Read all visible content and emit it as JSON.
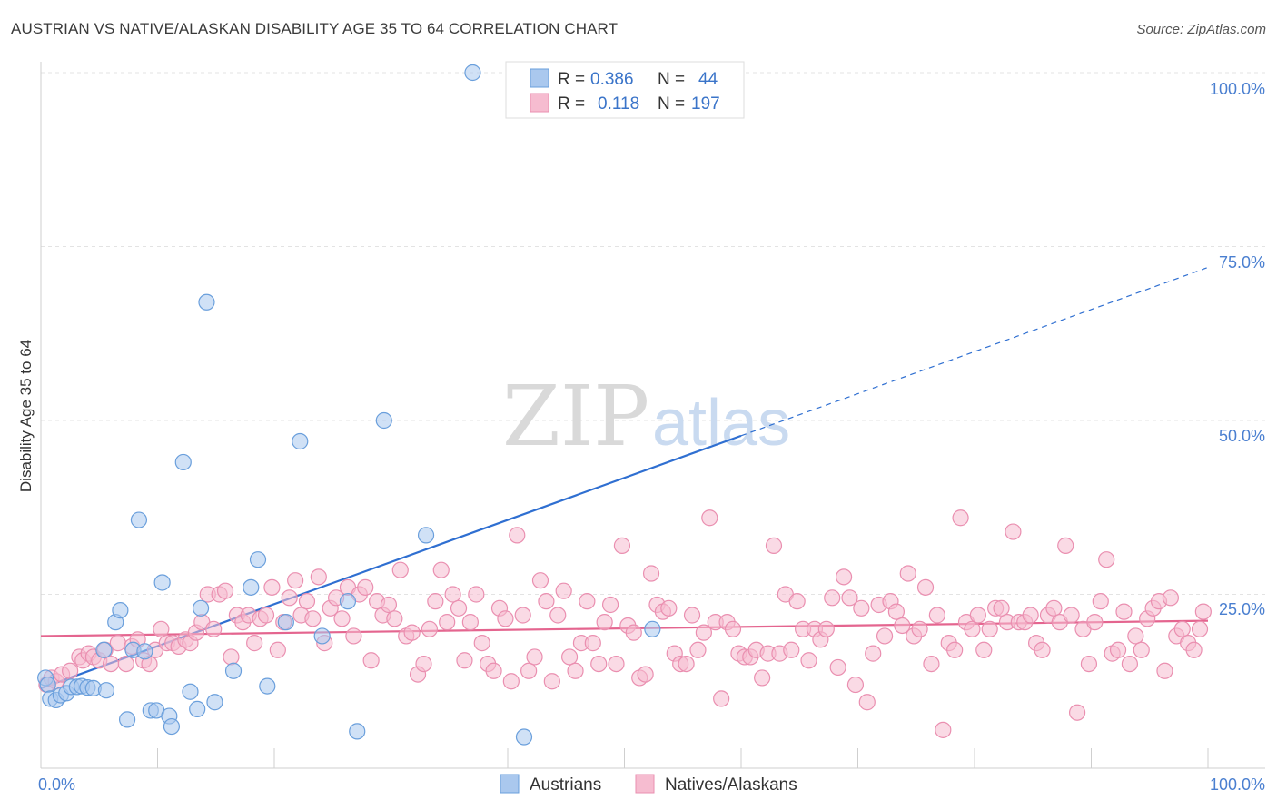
{
  "header": {
    "title": "AUSTRIAN VS NATIVE/ALASKAN DISABILITY AGE 35 TO 64 CORRELATION CHART",
    "source": "Source: ZipAtlas.com"
  },
  "watermark": {
    "zip": "ZIP",
    "atlas": "atlas"
  },
  "colors": {
    "blue_fill": "#aac8ee",
    "blue_stroke": "#6a9fdc",
    "blue_line": "#2f6fd1",
    "pink_fill": "#f6bcd0",
    "pink_stroke": "#ea8fb0",
    "pink_line": "#e4658f",
    "grid": "#e3e3e3",
    "axis": "#cfcfcf"
  },
  "legend": {
    "rows": [
      {
        "r_label": "R =",
        "r_value": "0.386",
        "n_label": "N =",
        "n_value": "44"
      },
      {
        "r_label": "R =",
        "r_value": "0.118",
        "n_label": "N =",
        "n_value": "197"
      }
    ]
  },
  "bottom_legend": {
    "items": [
      "Austrians",
      "Natives/Alaskans"
    ]
  },
  "chart_data": {
    "type": "scatter",
    "title": "AUSTRIAN VS NATIVE/ALASKAN DISABILITY AGE 35 TO 64 CORRELATION CHART",
    "xlabel": "",
    "ylabel": "Disability Age 35 to 64",
    "xlim": [
      0,
      100
    ],
    "ylim": [
      0,
      100
    ],
    "x_tick_labels": [
      "0.0%",
      "100.0%"
    ],
    "y_tick_labels": [
      "100.0%",
      "75.0%",
      "50.0%",
      "25.0%"
    ],
    "y_ticks": [
      100,
      75,
      50,
      25
    ],
    "grid": true,
    "legend_position": "top-center",
    "series": [
      {
        "name": "Austrians",
        "r": 0.386,
        "n": 44,
        "trend": {
          "x0": 0,
          "y0": 11.5,
          "x1": 60,
          "y1": 47.8,
          "dashed_to_x": 100
        },
        "points": [
          [
            0.4,
            13
          ],
          [
            0.6,
            12
          ],
          [
            0.8,
            10
          ],
          [
            1.3,
            9.8
          ],
          [
            1.7,
            10.5
          ],
          [
            2.2,
            10.8
          ],
          [
            2.6,
            11.7
          ],
          [
            3.1,
            11.7
          ],
          [
            3.5,
            11.8
          ],
          [
            4.0,
            11.6
          ],
          [
            4.5,
            11.5
          ],
          [
            5.6,
            11.2
          ],
          [
            5.4,
            17
          ],
          [
            6.4,
            21
          ],
          [
            6.8,
            22.7
          ],
          [
            7.4,
            7
          ],
          [
            7.9,
            17
          ],
          [
            8.4,
            35.7
          ],
          [
            8.9,
            16.8
          ],
          [
            9.4,
            8.3
          ],
          [
            9.9,
            8.3
          ],
          [
            10.4,
            26.7
          ],
          [
            11.0,
            7.5
          ],
          [
            11.2,
            6
          ],
          [
            12.2,
            44
          ],
          [
            12.8,
            11
          ],
          [
            13.4,
            8.5
          ],
          [
            13.7,
            23
          ],
          [
            14.2,
            67
          ],
          [
            14.9,
            9.5
          ],
          [
            16.5,
            14
          ],
          [
            18.0,
            26
          ],
          [
            18.6,
            30
          ],
          [
            19.4,
            11.8
          ],
          [
            21.0,
            21
          ],
          [
            22.2,
            47
          ],
          [
            24.1,
            19
          ],
          [
            26.3,
            24
          ],
          [
            27.1,
            5.3
          ],
          [
            29.4,
            50
          ],
          [
            33.0,
            33.5
          ],
          [
            37.0,
            100
          ],
          [
            41.4,
            4.5
          ],
          [
            52.4,
            20
          ]
        ]
      },
      {
        "name": "Natives/Alaskans",
        "r": 0.118,
        "n": 197,
        "trend": {
          "x0": 0,
          "y0": 19.0,
          "x1": 100,
          "y1": 21.2
        },
        "points": [
          [
            0.5,
            12
          ],
          [
            0.9,
            13
          ],
          [
            1.3,
            12.5
          ],
          [
            1.8,
            13.5
          ],
          [
            2.5,
            14
          ],
          [
            3.3,
            16
          ],
          [
            3.6,
            15.5
          ],
          [
            4.1,
            16.5
          ],
          [
            4.5,
            16
          ],
          [
            5.0,
            15.5
          ],
          [
            5.5,
            17
          ],
          [
            6.0,
            15
          ],
          [
            6.6,
            18
          ],
          [
            7.3,
            15
          ],
          [
            7.8,
            17.5
          ],
          [
            8.3,
            18.5
          ],
          [
            8.8,
            15.5
          ],
          [
            9.3,
            15
          ],
          [
            9.8,
            17
          ],
          [
            10.3,
            20
          ],
          [
            10.8,
            18
          ],
          [
            11.3,
            18
          ],
          [
            11.8,
            17.5
          ],
          [
            12.4,
            18.5
          ],
          [
            12.8,
            18
          ],
          [
            13.3,
            19.5
          ],
          [
            13.8,
            21
          ],
          [
            14.3,
            25
          ],
          [
            14.8,
            20
          ],
          [
            15.3,
            25
          ],
          [
            15.8,
            25.5
          ],
          [
            16.3,
            16
          ],
          [
            16.8,
            22
          ],
          [
            17.3,
            21
          ],
          [
            17.8,
            22
          ],
          [
            18.3,
            18
          ],
          [
            18.8,
            21.5
          ],
          [
            19.3,
            22
          ],
          [
            19.8,
            26
          ],
          [
            20.3,
            17
          ],
          [
            20.8,
            21
          ],
          [
            21.3,
            24.5
          ],
          [
            21.8,
            27
          ],
          [
            22.3,
            22
          ],
          [
            22.8,
            24
          ],
          [
            23.3,
            21.5
          ],
          [
            23.8,
            27.5
          ],
          [
            24.3,
            18
          ],
          [
            24.8,
            23
          ],
          [
            25.3,
            24.5
          ],
          [
            25.8,
            21.5
          ],
          [
            26.3,
            26
          ],
          [
            26.8,
            19
          ],
          [
            27.3,
            25
          ],
          [
            27.8,
            26
          ],
          [
            28.3,
            15.5
          ],
          [
            28.8,
            24
          ],
          [
            29.3,
            22
          ],
          [
            29.8,
            23.5
          ],
          [
            30.3,
            21.5
          ],
          [
            30.8,
            28.5
          ],
          [
            31.3,
            19
          ],
          [
            31.8,
            19.5
          ],
          [
            32.3,
            13.5
          ],
          [
            32.8,
            15
          ],
          [
            33.3,
            20
          ],
          [
            33.8,
            24
          ],
          [
            34.3,
            28.5
          ],
          [
            34.8,
            21
          ],
          [
            35.3,
            25
          ],
          [
            35.8,
            23
          ],
          [
            36.3,
            15.5
          ],
          [
            36.8,
            21
          ],
          [
            37.3,
            25
          ],
          [
            37.8,
            18
          ],
          [
            38.3,
            15
          ],
          [
            38.8,
            14
          ],
          [
            39.3,
            23
          ],
          [
            39.8,
            21.5
          ],
          [
            40.3,
            12.5
          ],
          [
            40.8,
            33.5
          ],
          [
            41.3,
            22
          ],
          [
            41.8,
            14
          ],
          [
            42.3,
            16
          ],
          [
            42.8,
            27
          ],
          [
            43.3,
            24
          ],
          [
            43.8,
            12.5
          ],
          [
            44.3,
            22
          ],
          [
            44.8,
            25.5
          ],
          [
            45.3,
            16
          ],
          [
            45.8,
            14
          ],
          [
            46.3,
            18
          ],
          [
            46.8,
            24
          ],
          [
            47.3,
            18
          ],
          [
            47.8,
            15
          ],
          [
            48.3,
            21
          ],
          [
            48.8,
            23.5
          ],
          [
            49.3,
            15
          ],
          [
            49.8,
            32
          ],
          [
            50.3,
            20.5
          ],
          [
            50.8,
            19.5
          ],
          [
            51.3,
            13
          ],
          [
            51.8,
            13.5
          ],
          [
            52.3,
            28
          ],
          [
            52.8,
            23.5
          ],
          [
            53.3,
            22.5
          ],
          [
            53.8,
            23
          ],
          [
            54.3,
            16.5
          ],
          [
            54.8,
            15
          ],
          [
            55.3,
            15
          ],
          [
            55.8,
            22
          ],
          [
            56.3,
            17
          ],
          [
            56.8,
            19.5
          ],
          [
            57.3,
            36
          ],
          [
            57.8,
            21
          ],
          [
            58.3,
            10
          ],
          [
            58.8,
            21
          ],
          [
            59.3,
            20
          ],
          [
            59.8,
            16.5
          ],
          [
            60.3,
            16
          ],
          [
            60.8,
            16
          ],
          [
            61.3,
            17
          ],
          [
            61.8,
            13
          ],
          [
            62.3,
            16.5
          ],
          [
            62.8,
            32
          ],
          [
            63.3,
            16.5
          ],
          [
            63.8,
            25
          ],
          [
            64.3,
            17
          ],
          [
            64.8,
            24
          ],
          [
            65.3,
            20
          ],
          [
            65.8,
            15.5
          ],
          [
            66.3,
            20
          ],
          [
            66.8,
            18.5
          ],
          [
            67.3,
            20
          ],
          [
            67.8,
            24.5
          ],
          [
            68.3,
            14.5
          ],
          [
            68.8,
            27.5
          ],
          [
            69.3,
            24.5
          ],
          [
            69.8,
            12
          ],
          [
            70.3,
            23
          ],
          [
            70.8,
            9.5
          ],
          [
            71.3,
            16.5
          ],
          [
            71.8,
            23.5
          ],
          [
            72.3,
            19
          ],
          [
            72.8,
            24
          ],
          [
            73.3,
            22.5
          ],
          [
            73.8,
            20.5
          ],
          [
            74.3,
            28
          ],
          [
            74.8,
            19
          ],
          [
            75.3,
            20
          ],
          [
            75.8,
            26
          ],
          [
            76.3,
            15
          ],
          [
            76.8,
            22
          ],
          [
            77.3,
            5.5
          ],
          [
            77.8,
            18
          ],
          [
            78.3,
            17
          ],
          [
            78.8,
            36
          ],
          [
            79.3,
            21
          ],
          [
            79.8,
            20
          ],
          [
            80.3,
            22
          ],
          [
            80.8,
            17
          ],
          [
            81.3,
            20
          ],
          [
            81.8,
            23
          ],
          [
            82.3,
            23
          ],
          [
            82.8,
            21
          ],
          [
            83.3,
            34
          ],
          [
            83.8,
            21
          ],
          [
            84.3,
            21
          ],
          [
            84.8,
            22
          ],
          [
            85.3,
            18
          ],
          [
            85.8,
            17
          ],
          [
            86.3,
            22
          ],
          [
            86.8,
            23
          ],
          [
            87.3,
            21
          ],
          [
            87.8,
            32
          ],
          [
            88.3,
            22
          ],
          [
            88.8,
            8
          ],
          [
            89.3,
            20
          ],
          [
            89.8,
            15
          ],
          [
            90.3,
            21
          ],
          [
            90.8,
            24
          ],
          [
            91.3,
            30
          ],
          [
            91.8,
            16.5
          ],
          [
            92.3,
            17
          ],
          [
            92.8,
            22.5
          ],
          [
            93.3,
            15
          ],
          [
            93.8,
            19
          ],
          [
            94.3,
            17
          ],
          [
            94.8,
            21.5
          ],
          [
            95.3,
            23
          ],
          [
            95.8,
            24
          ],
          [
            96.3,
            14
          ],
          [
            96.8,
            24.5
          ],
          [
            97.3,
            19
          ],
          [
            97.8,
            20
          ],
          [
            98.3,
            18
          ],
          [
            98.8,
            17
          ],
          [
            99.3,
            20
          ],
          [
            99.6,
            22.5
          ]
        ]
      }
    ]
  }
}
